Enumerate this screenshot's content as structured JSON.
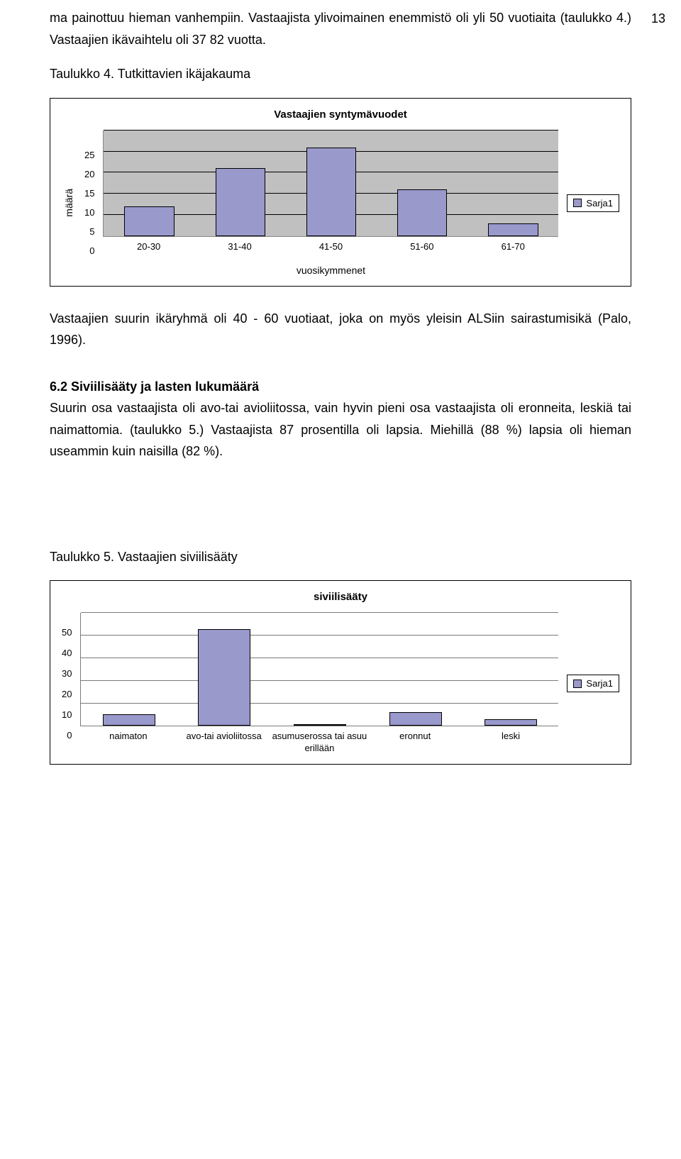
{
  "page_number": "13",
  "para1": "ma painottuu hieman vanhempiin. Vastaajista ylivoimainen enemmistö oli yli 50 vuotiaita (taulukko 4.) Vastaajien ikävaihtelu oli 37 82 vuotta.",
  "table4_heading": "Taulukko 4. Tutkittavien ikäjakauma",
  "chart1": {
    "type": "bar",
    "title": "Vastaajien syntymävuodet",
    "y_label": "määrä",
    "x_label": "vuosikymmenet",
    "categories": [
      "20-30",
      "31-40",
      "41-50",
      "51-60",
      "61-70"
    ],
    "values": [
      7,
      16,
      21,
      11,
      3
    ],
    "ymax": 25,
    "ytick_step": 5,
    "yticks": [
      "25",
      "20",
      "15",
      "10",
      "5",
      "0"
    ],
    "bar_color": "#9999cc",
    "plot_bg": "#c0c0c0",
    "grid_color": "#000000",
    "legend_label": "Sarja1"
  },
  "para2": "Vastaajien suurin ikäryhmä oli 40 - 60 vuotiaat, joka on myös yleisin ALSiin sairastumisikä (Palo, 1996).",
  "sec62_heading": "6.2 Siviilisääty ja lasten lukumäärä",
  "para3": "Suurin osa vastaajista oli avo-tai avioliitossa, vain hyvin pieni osa vastaajista oli eronneita, leskiä tai naimattomia. (taulukko 5.) Vastaajista 87 prosentilla oli lapsia. Miehillä (88 %) lapsia oli hieman useammin kuin naisilla (82 %).",
  "table5_heading": "Taulukko 5. Vastaajien siviilisääty",
  "chart2": {
    "type": "bar",
    "title": "siviilisääty",
    "categories": [
      "naimaton",
      "avo-tai avioliitossa",
      "asumuserossa tai asuu erillään",
      "eronnut",
      "leski"
    ],
    "values": [
      5,
      43,
      0,
      6,
      3
    ],
    "ymax": 50,
    "ytick_step": 10,
    "yticks": [
      "50",
      "40",
      "30",
      "20",
      "10",
      "0"
    ],
    "bar_color": "#9999cc",
    "grid_color": "#7a7a7a",
    "legend_label": "Sarja1"
  }
}
